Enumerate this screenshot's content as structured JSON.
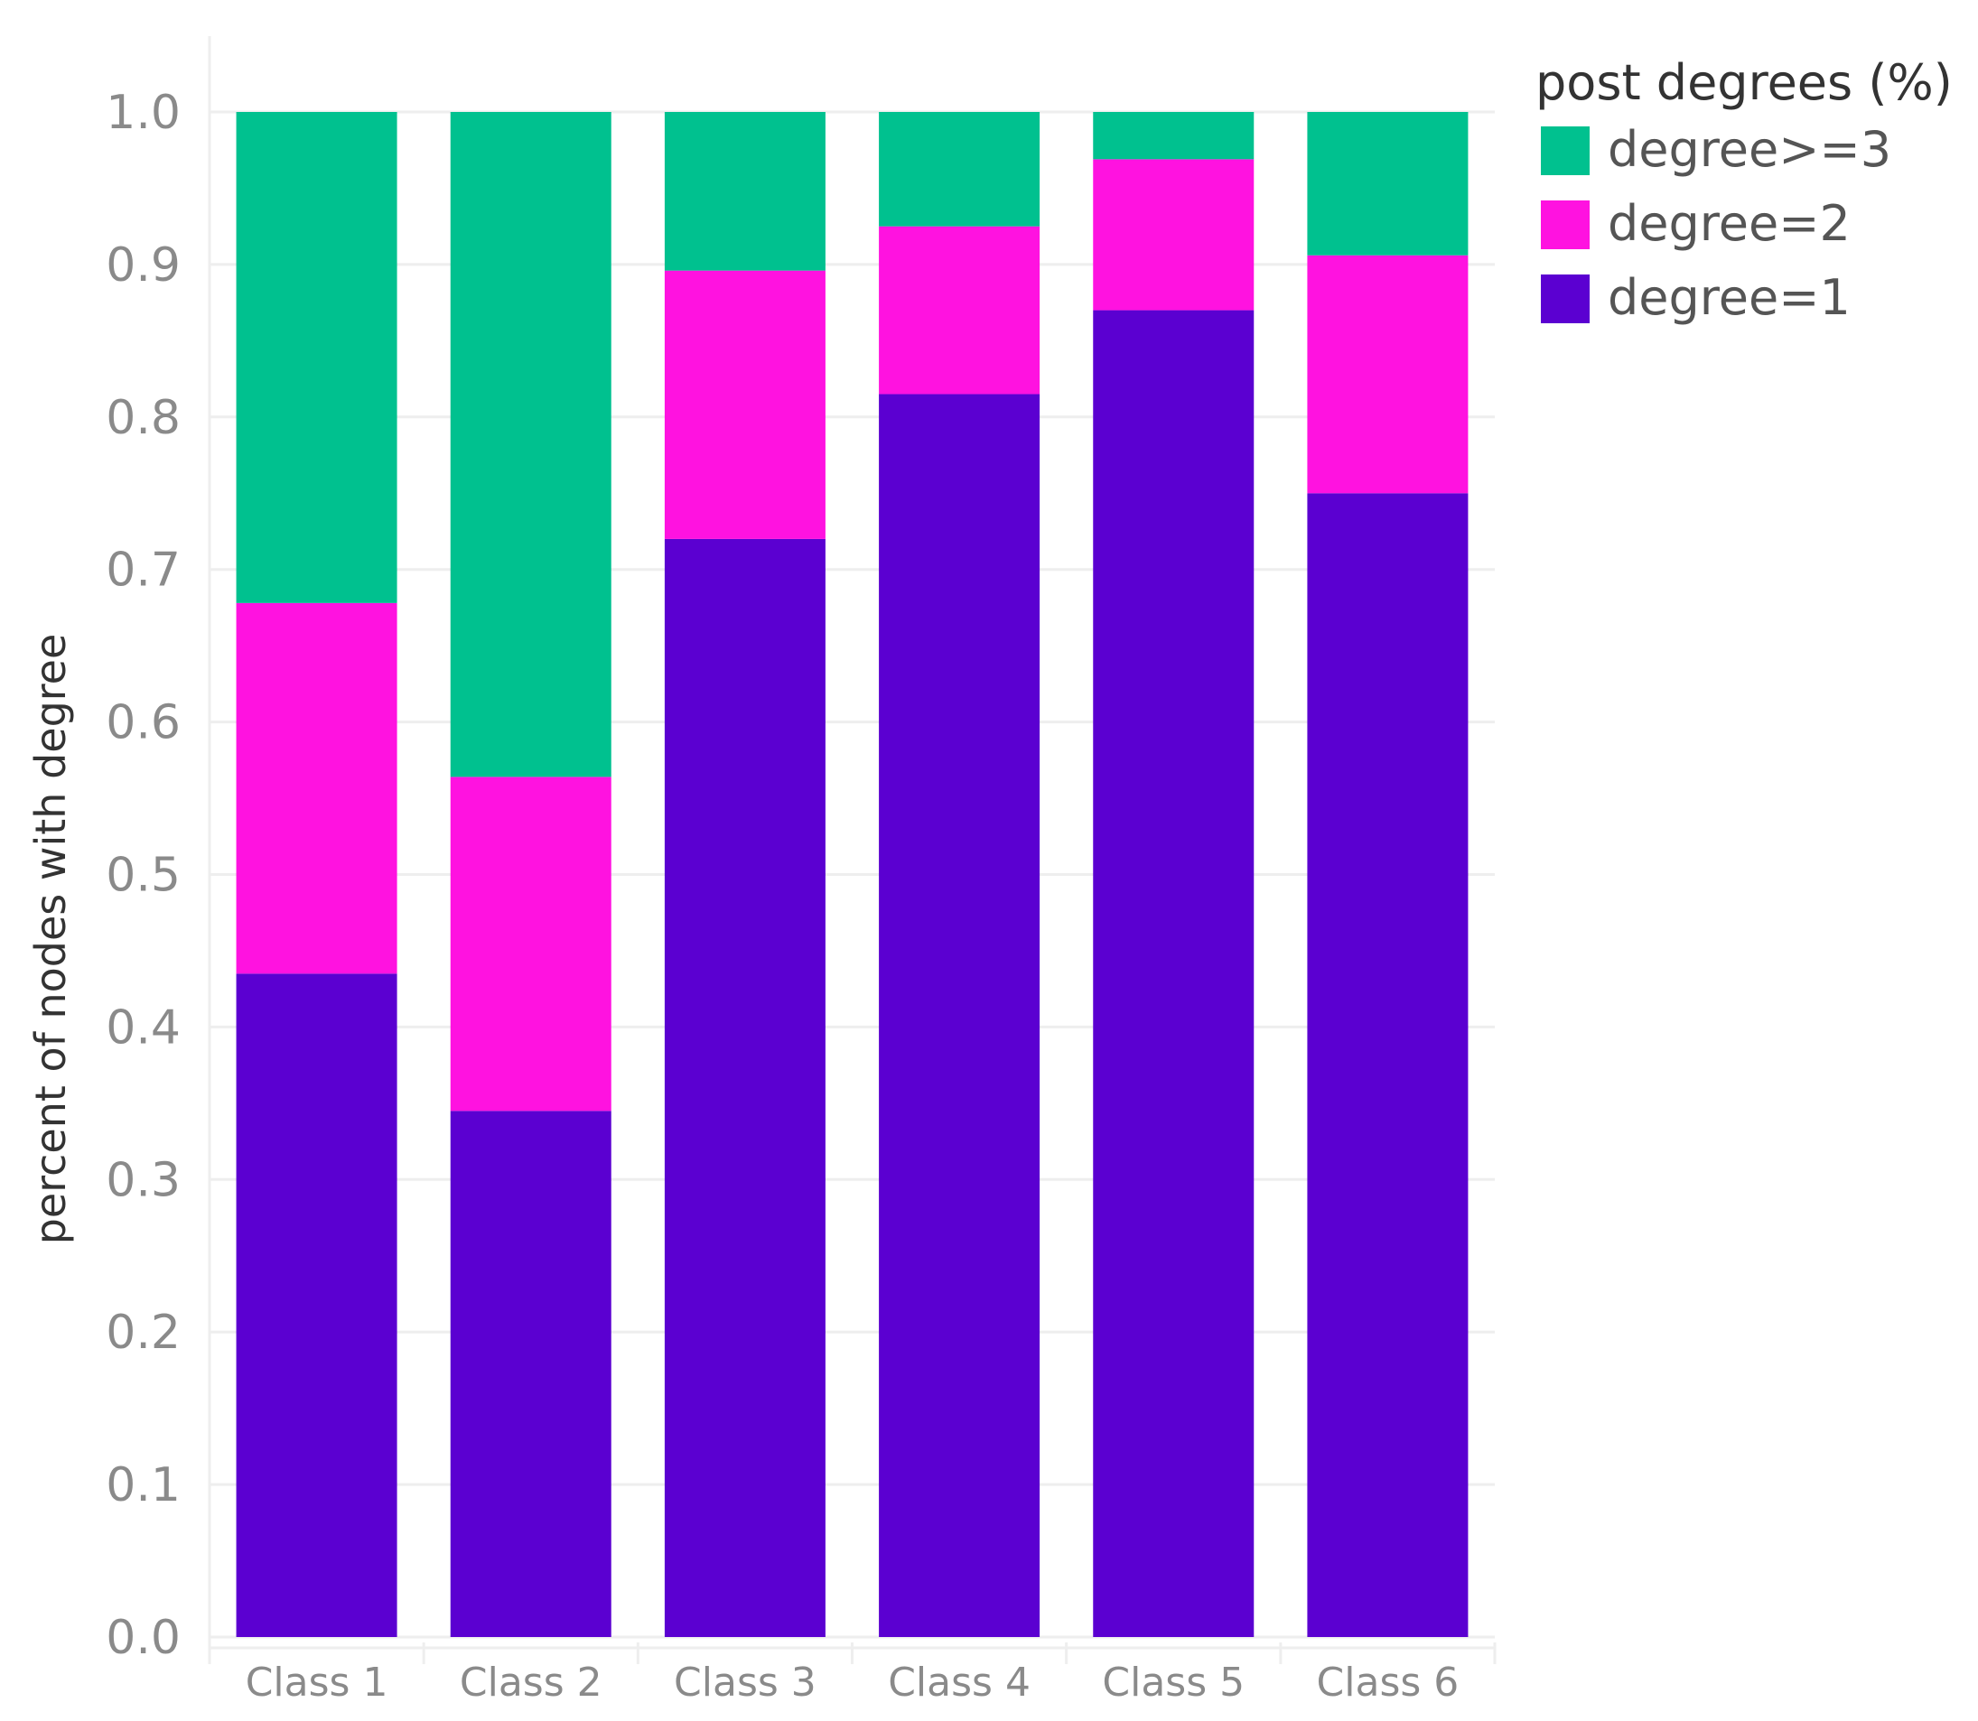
{
  "chart_data": {
    "type": "bar",
    "stacked": true,
    "categories": [
      "Class 1",
      "Class 2",
      "Class 3",
      "Class 4",
      "Class 5",
      "Class 6"
    ],
    "series": [
      {
        "name": "degree=1",
        "color": "#5b00d1",
        "values": [
          0.435,
          0.345,
          0.72,
          0.815,
          0.87,
          0.75
        ]
      },
      {
        "name": "degree=2",
        "color": "#ff12e0",
        "values": [
          0.243,
          0.219,
          0.176,
          0.11,
          0.099,
          0.156
        ]
      },
      {
        "name": "degree>=3",
        "color": "#00c18f",
        "values": [
          0.322,
          0.436,
          0.104,
          0.075,
          0.031,
          0.094
        ]
      }
    ],
    "title": "",
    "xlabel": "",
    "ylabel": "percent of nodes with degree",
    "ylim": [
      0,
      1.0
    ],
    "yticks": [
      "0.0",
      "0.1",
      "0.2",
      "0.3",
      "0.4",
      "0.5",
      "0.6",
      "0.7",
      "0.8",
      "0.9",
      "1.0"
    ],
    "grid": true,
    "legend": {
      "title": "post degrees (%)",
      "position": "top-right",
      "order": [
        "degree>=3",
        "degree=2",
        "degree=1"
      ]
    }
  }
}
